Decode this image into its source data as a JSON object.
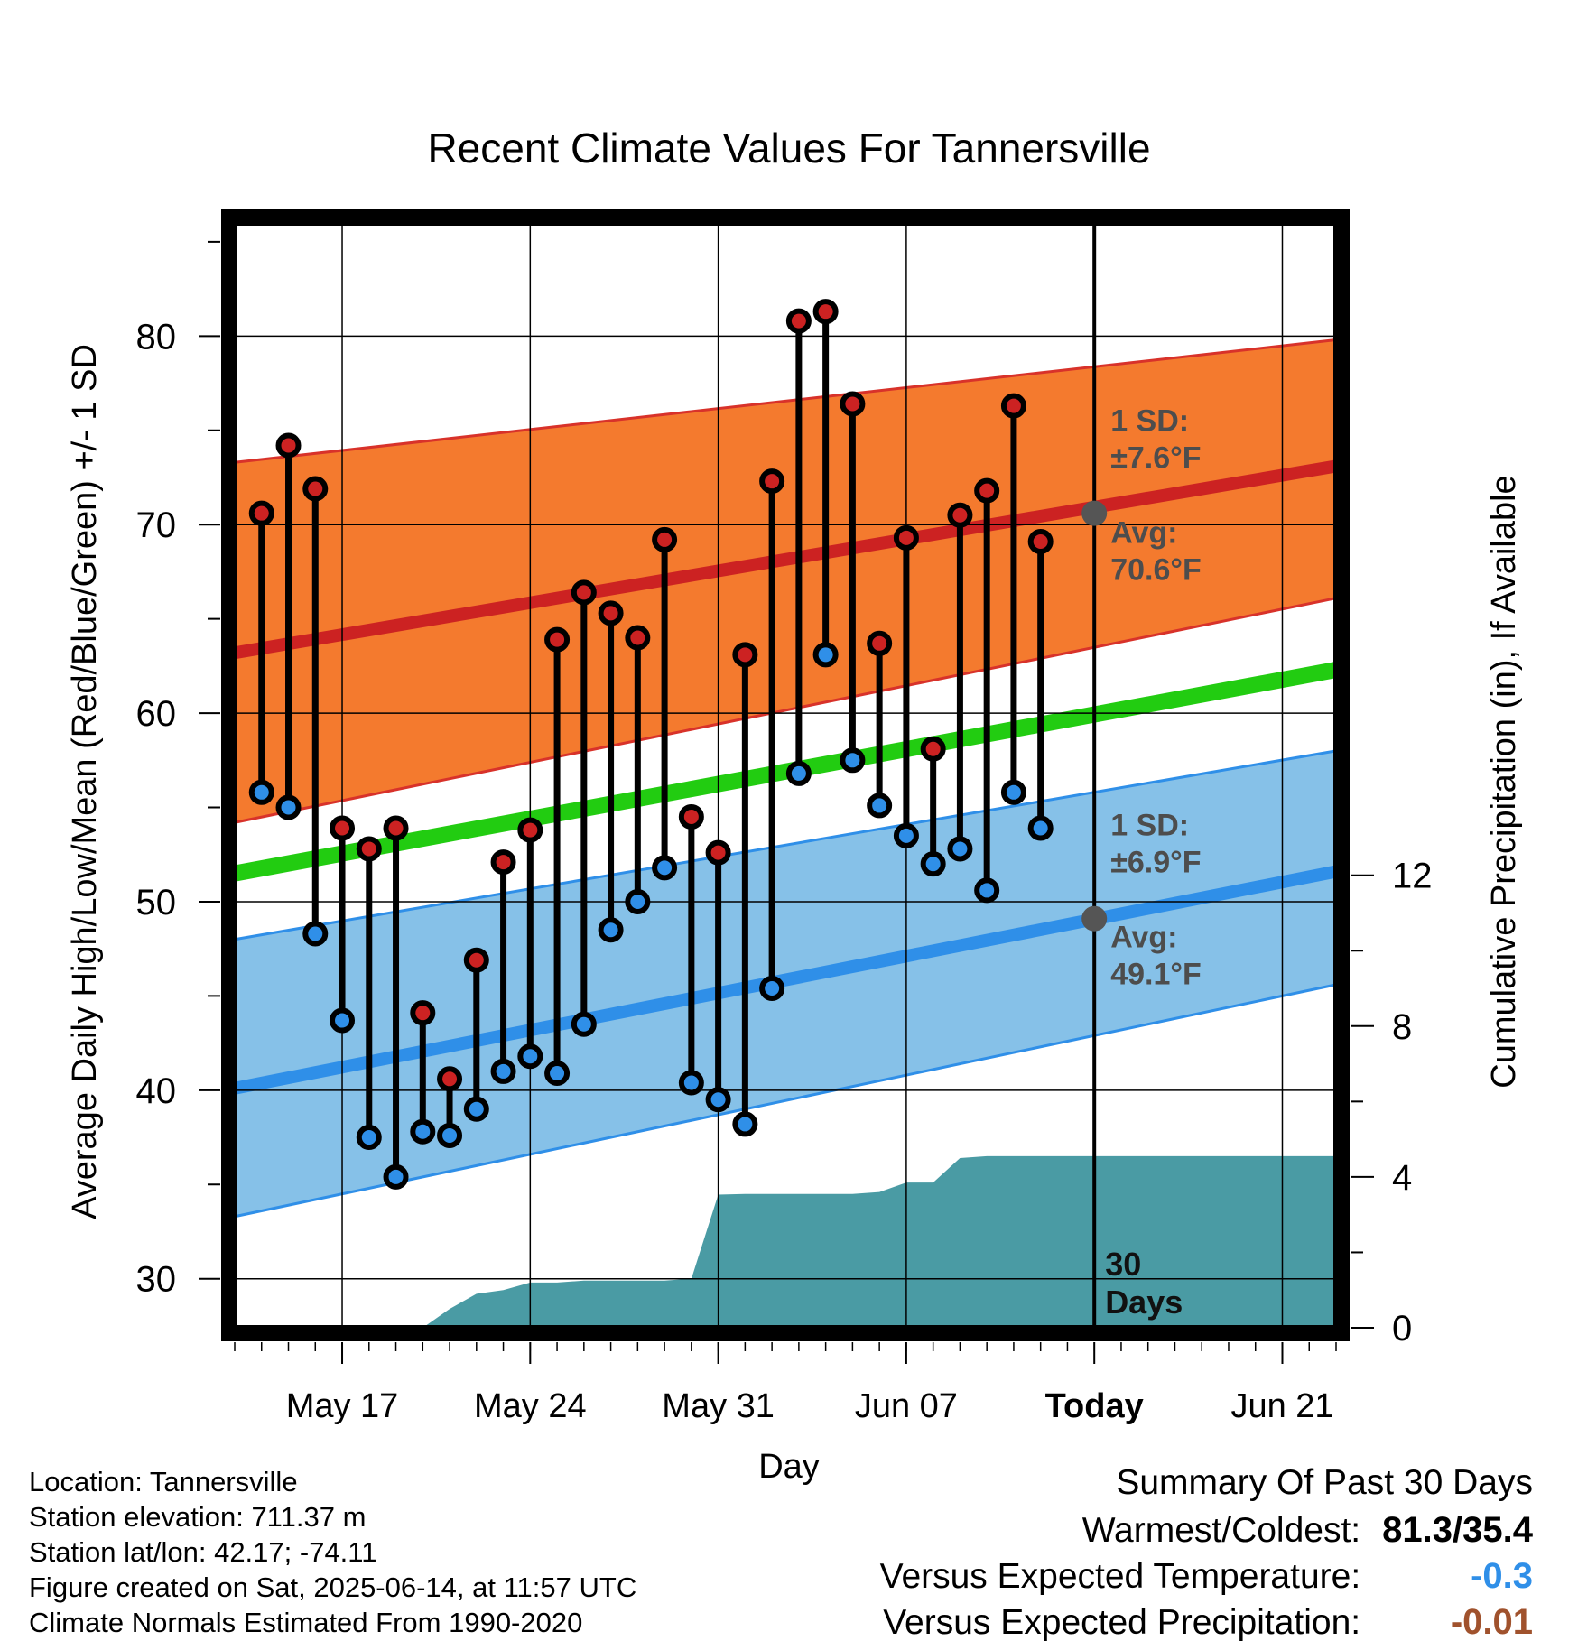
{
  "chart_data": {
    "type": "line",
    "title": "Recent Climate Values For Tannersville",
    "xlabel": "Day",
    "ylabel": "Average Daily High/Low/Mean (Red/Blue/Green) +/- 1 SD",
    "y2label": "Cumulative Precipitation (in), If Available",
    "ylim": [
      27.4,
      86
    ],
    "y_ticks": [
      30,
      40,
      50,
      60,
      70,
      80
    ],
    "y2lim": [
      0,
      29.3
    ],
    "y2_ticks": [
      0,
      4,
      8,
      12
    ],
    "x_range": [
      "2025-05-13",
      "2025-06-23"
    ],
    "x_ticks": [
      {
        "date": "2025-05-17",
        "label": "May 17"
      },
      {
        "date": "2025-05-24",
        "label": "May 24"
      },
      {
        "date": "2025-05-31",
        "label": "May 31"
      },
      {
        "date": "2025-06-07",
        "label": "Jun 07"
      },
      {
        "date": "2025-06-14",
        "label": "Today"
      },
      {
        "date": "2025-06-21",
        "label": "Jun 21"
      }
    ],
    "grid": true,
    "today": "2025-06-14",
    "today_label": "30\nDays",
    "normals": {
      "x": [
        "2025-05-13",
        "2025-06-23"
      ],
      "high_avg": [
        63.2,
        73.1
      ],
      "high_upper": [
        73.3,
        79.8
      ],
      "high_lower": [
        54.2,
        66.1
      ],
      "low_avg": [
        40.1,
        51.6
      ],
      "low_upper": [
        48.0,
        58.0
      ],
      "low_lower": [
        33.3,
        45.6
      ],
      "mean_avg": [
        51.5,
        62.3
      ]
    },
    "annotations": {
      "high": {
        "sd_label": "1 SD:",
        "sd_value": "±7.6°F",
        "avg_label": "Avg:",
        "avg_value": "70.6°F",
        "today_value": 70.6
      },
      "low": {
        "sd_label": "1 SD:",
        "sd_value": "±6.9°F",
        "avg_label": "Avg:",
        "avg_value": "49.1°F",
        "today_value": 49.1
      }
    },
    "series": [
      {
        "name": "High",
        "color": "#cc2222",
        "x": [
          "2025-05-14",
          "2025-05-15",
          "2025-05-16",
          "2025-05-17",
          "2025-05-18",
          "2025-05-19",
          "2025-05-20",
          "2025-05-21",
          "2025-05-22",
          "2025-05-23",
          "2025-05-24",
          "2025-05-25",
          "2025-05-26",
          "2025-05-27",
          "2025-05-28",
          "2025-05-29",
          "2025-05-30",
          "2025-05-31",
          "2025-06-01",
          "2025-06-02",
          "2025-06-03",
          "2025-06-04",
          "2025-06-05",
          "2025-06-06",
          "2025-06-07",
          "2025-06-08",
          "2025-06-09",
          "2025-06-10",
          "2025-06-11",
          "2025-06-12",
          "2025-06-13"
        ],
        "values": [
          70.6,
          74.2,
          71.9,
          53.9,
          52.8,
          53.9,
          44.1,
          40.6,
          46.9,
          52.1,
          53.8,
          63.9,
          66.4,
          65.3,
          64.0,
          69.2,
          54.5,
          52.6,
          63.1,
          72.3,
          80.8,
          81.3,
          76.4,
          63.7,
          69.3,
          58.1,
          70.5,
          71.8,
          76.3,
          69.1,
          null
        ]
      },
      {
        "name": "Low",
        "color": "#2f8fe8",
        "x": [
          "2025-05-14",
          "2025-05-15",
          "2025-05-16",
          "2025-05-17",
          "2025-05-18",
          "2025-05-19",
          "2025-05-20",
          "2025-05-21",
          "2025-05-22",
          "2025-05-23",
          "2025-05-24",
          "2025-05-25",
          "2025-05-26",
          "2025-05-27",
          "2025-05-28",
          "2025-05-29",
          "2025-05-30",
          "2025-05-31",
          "2025-06-01",
          "2025-06-02",
          "2025-06-03",
          "2025-06-04",
          "2025-06-05",
          "2025-06-06",
          "2025-06-07",
          "2025-06-08",
          "2025-06-09",
          "2025-06-10",
          "2025-06-11",
          "2025-06-12",
          "2025-06-13"
        ],
        "values": [
          55.8,
          55.0,
          48.3,
          43.7,
          37.5,
          35.4,
          37.8,
          37.6,
          39.0,
          41.0,
          41.8,
          40.9,
          43.5,
          48.5,
          50.0,
          51.8,
          40.4,
          39.5,
          38.2,
          45.4,
          56.8,
          63.1,
          57.5,
          55.1,
          53.5,
          52.0,
          52.8,
          50.6,
          55.8,
          53.9,
          null
        ]
      },
      {
        "name": "Cumulative Precipitation",
        "color": "#4a9ba4",
        "x": [
          "2025-05-18",
          "2025-05-19",
          "2025-05-20",
          "2025-05-21",
          "2025-05-22",
          "2025-05-23",
          "2025-05-24",
          "2025-05-25",
          "2025-05-26",
          "2025-05-27",
          "2025-05-28",
          "2025-05-29",
          "2025-05-30",
          "2025-05-31",
          "2025-06-01",
          "2025-06-02",
          "2025-06-03",
          "2025-06-04",
          "2025-06-05",
          "2025-06-06",
          "2025-06-07",
          "2025-06-08",
          "2025-06-09",
          "2025-06-10",
          "2025-06-11",
          "2025-06-12",
          "2025-06-13",
          "2025-06-14",
          "2025-06-23"
        ],
        "values": [
          0,
          0,
          0,
          0.5,
          0.9,
          1.0,
          1.2,
          1.2,
          1.25,
          1.25,
          1.25,
          1.25,
          1.3,
          3.53,
          3.55,
          3.55,
          3.55,
          3.55,
          3.55,
          3.6,
          3.85,
          3.85,
          4.5,
          4.55,
          4.55,
          4.55,
          4.55,
          4.55,
          4.55
        ]
      }
    ]
  },
  "footer": {
    "location": "Location: Tannersville",
    "elevation": "Station elevation: 711.37 m",
    "latlon": "Station lat/lon: 42.17; -74.11",
    "created": "Figure created on Sat, 2025-06-14, at 11:57 UTC",
    "normals": "Climate Normals Estimated From 1990-2020"
  },
  "summary": {
    "heading": "Summary Of Past 30 Days",
    "warm_cold_label": "Warmest/Coldest:",
    "warm_cold_value": "81.3/35.4",
    "temp_label": "Versus Expected Temperature:",
    "temp_value": "-0.3",
    "temp_color": "#2f8fe8",
    "precip_label": "Versus Expected Precipitation:",
    "precip_value": "-0.01",
    "precip_color": "#a0522d"
  }
}
